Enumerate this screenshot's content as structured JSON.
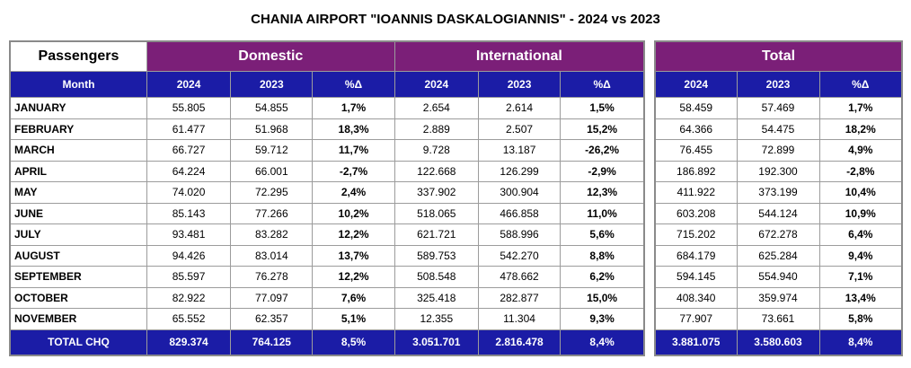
{
  "title": "CHANIA AIRPORT \"IOANNIS DASKALOGIANNIS\" - 2024 vs 2023",
  "headers": {
    "passengers": "Passengers",
    "domestic": "Domestic",
    "international": "International",
    "total": "Total",
    "month": "Month",
    "y2024": "2024",
    "y2023": "2023",
    "pct": "%Δ"
  },
  "rows": [
    {
      "month": "JANUARY",
      "d24": "55.805",
      "d23": "54.855",
      "dp": "1,7%",
      "i24": "2.654",
      "i23": "2.614",
      "ip": "1,5%",
      "t24": "58.459",
      "t23": "57.469",
      "tp": "1,7%"
    },
    {
      "month": "FEBRUARY",
      "d24": "61.477",
      "d23": "51.968",
      "dp": "18,3%",
      "i24": "2.889",
      "i23": "2.507",
      "ip": "15,2%",
      "t24": "64.366",
      "t23": "54.475",
      "tp": "18,2%"
    },
    {
      "month": "MARCH",
      "d24": "66.727",
      "d23": "59.712",
      "dp": "11,7%",
      "i24": "9.728",
      "i23": "13.187",
      "ip": "-26,2%",
      "t24": "76.455",
      "t23": "72.899",
      "tp": "4,9%"
    },
    {
      "month": "APRIL",
      "d24": "64.224",
      "d23": "66.001",
      "dp": "-2,7%",
      "i24": "122.668",
      "i23": "126.299",
      "ip": "-2,9%",
      "t24": "186.892",
      "t23": "192.300",
      "tp": "-2,8%"
    },
    {
      "month": "MAY",
      "d24": "74.020",
      "d23": "72.295",
      "dp": "2,4%",
      "i24": "337.902",
      "i23": "300.904",
      "ip": "12,3%",
      "t24": "411.922",
      "t23": "373.199",
      "tp": "10,4%"
    },
    {
      "month": "JUNE",
      "d24": "85.143",
      "d23": "77.266",
      "dp": "10,2%",
      "i24": "518.065",
      "i23": "466.858",
      "ip": "11,0%",
      "t24": "603.208",
      "t23": "544.124",
      "tp": "10,9%"
    },
    {
      "month": "JULY",
      "d24": "93.481",
      "d23": "83.282",
      "dp": "12,2%",
      "i24": "621.721",
      "i23": "588.996",
      "ip": "5,6%",
      "t24": "715.202",
      "t23": "672.278",
      "tp": "6,4%"
    },
    {
      "month": "AUGUST",
      "d24": "94.426",
      "d23": "83.014",
      "dp": "13,7%",
      "i24": "589.753",
      "i23": "542.270",
      "ip": "8,8%",
      "t24": "684.179",
      "t23": "625.284",
      "tp": "9,4%"
    },
    {
      "month": "SEPTEMBER",
      "d24": "85.597",
      "d23": "76.278",
      "dp": "12,2%",
      "i24": "508.548",
      "i23": "478.662",
      "ip": "6,2%",
      "t24": "594.145",
      "t23": "554.940",
      "tp": "7,1%"
    },
    {
      "month": "OCTOBER",
      "d24": "82.922",
      "d23": "77.097",
      "dp": "7,6%",
      "i24": "325.418",
      "i23": "282.877",
      "ip": "15,0%",
      "t24": "408.340",
      "t23": "359.974",
      "tp": "13,4%"
    },
    {
      "month": "NOVEMBER",
      "d24": "65.552",
      "d23": "62.357",
      "dp": "5,1%",
      "i24": "12.355",
      "i23": "11.304",
      "ip": "9,3%",
      "t24": "77.907",
      "t23": "73.661",
      "tp": "5,8%"
    }
  ],
  "total": {
    "month": "TOTAL CHQ",
    "d24": "829.374",
    "d23": "764.125",
    "dp": "8,5%",
    "i24": "3.051.701",
    "i23": "2.816.478",
    "ip": "8,4%",
    "t24": "3.881.075",
    "t23": "3.580.603",
    "tp": "8,4%"
  },
  "colors": {
    "purple": "#7b1f78",
    "blue": "#1b1ca6"
  }
}
